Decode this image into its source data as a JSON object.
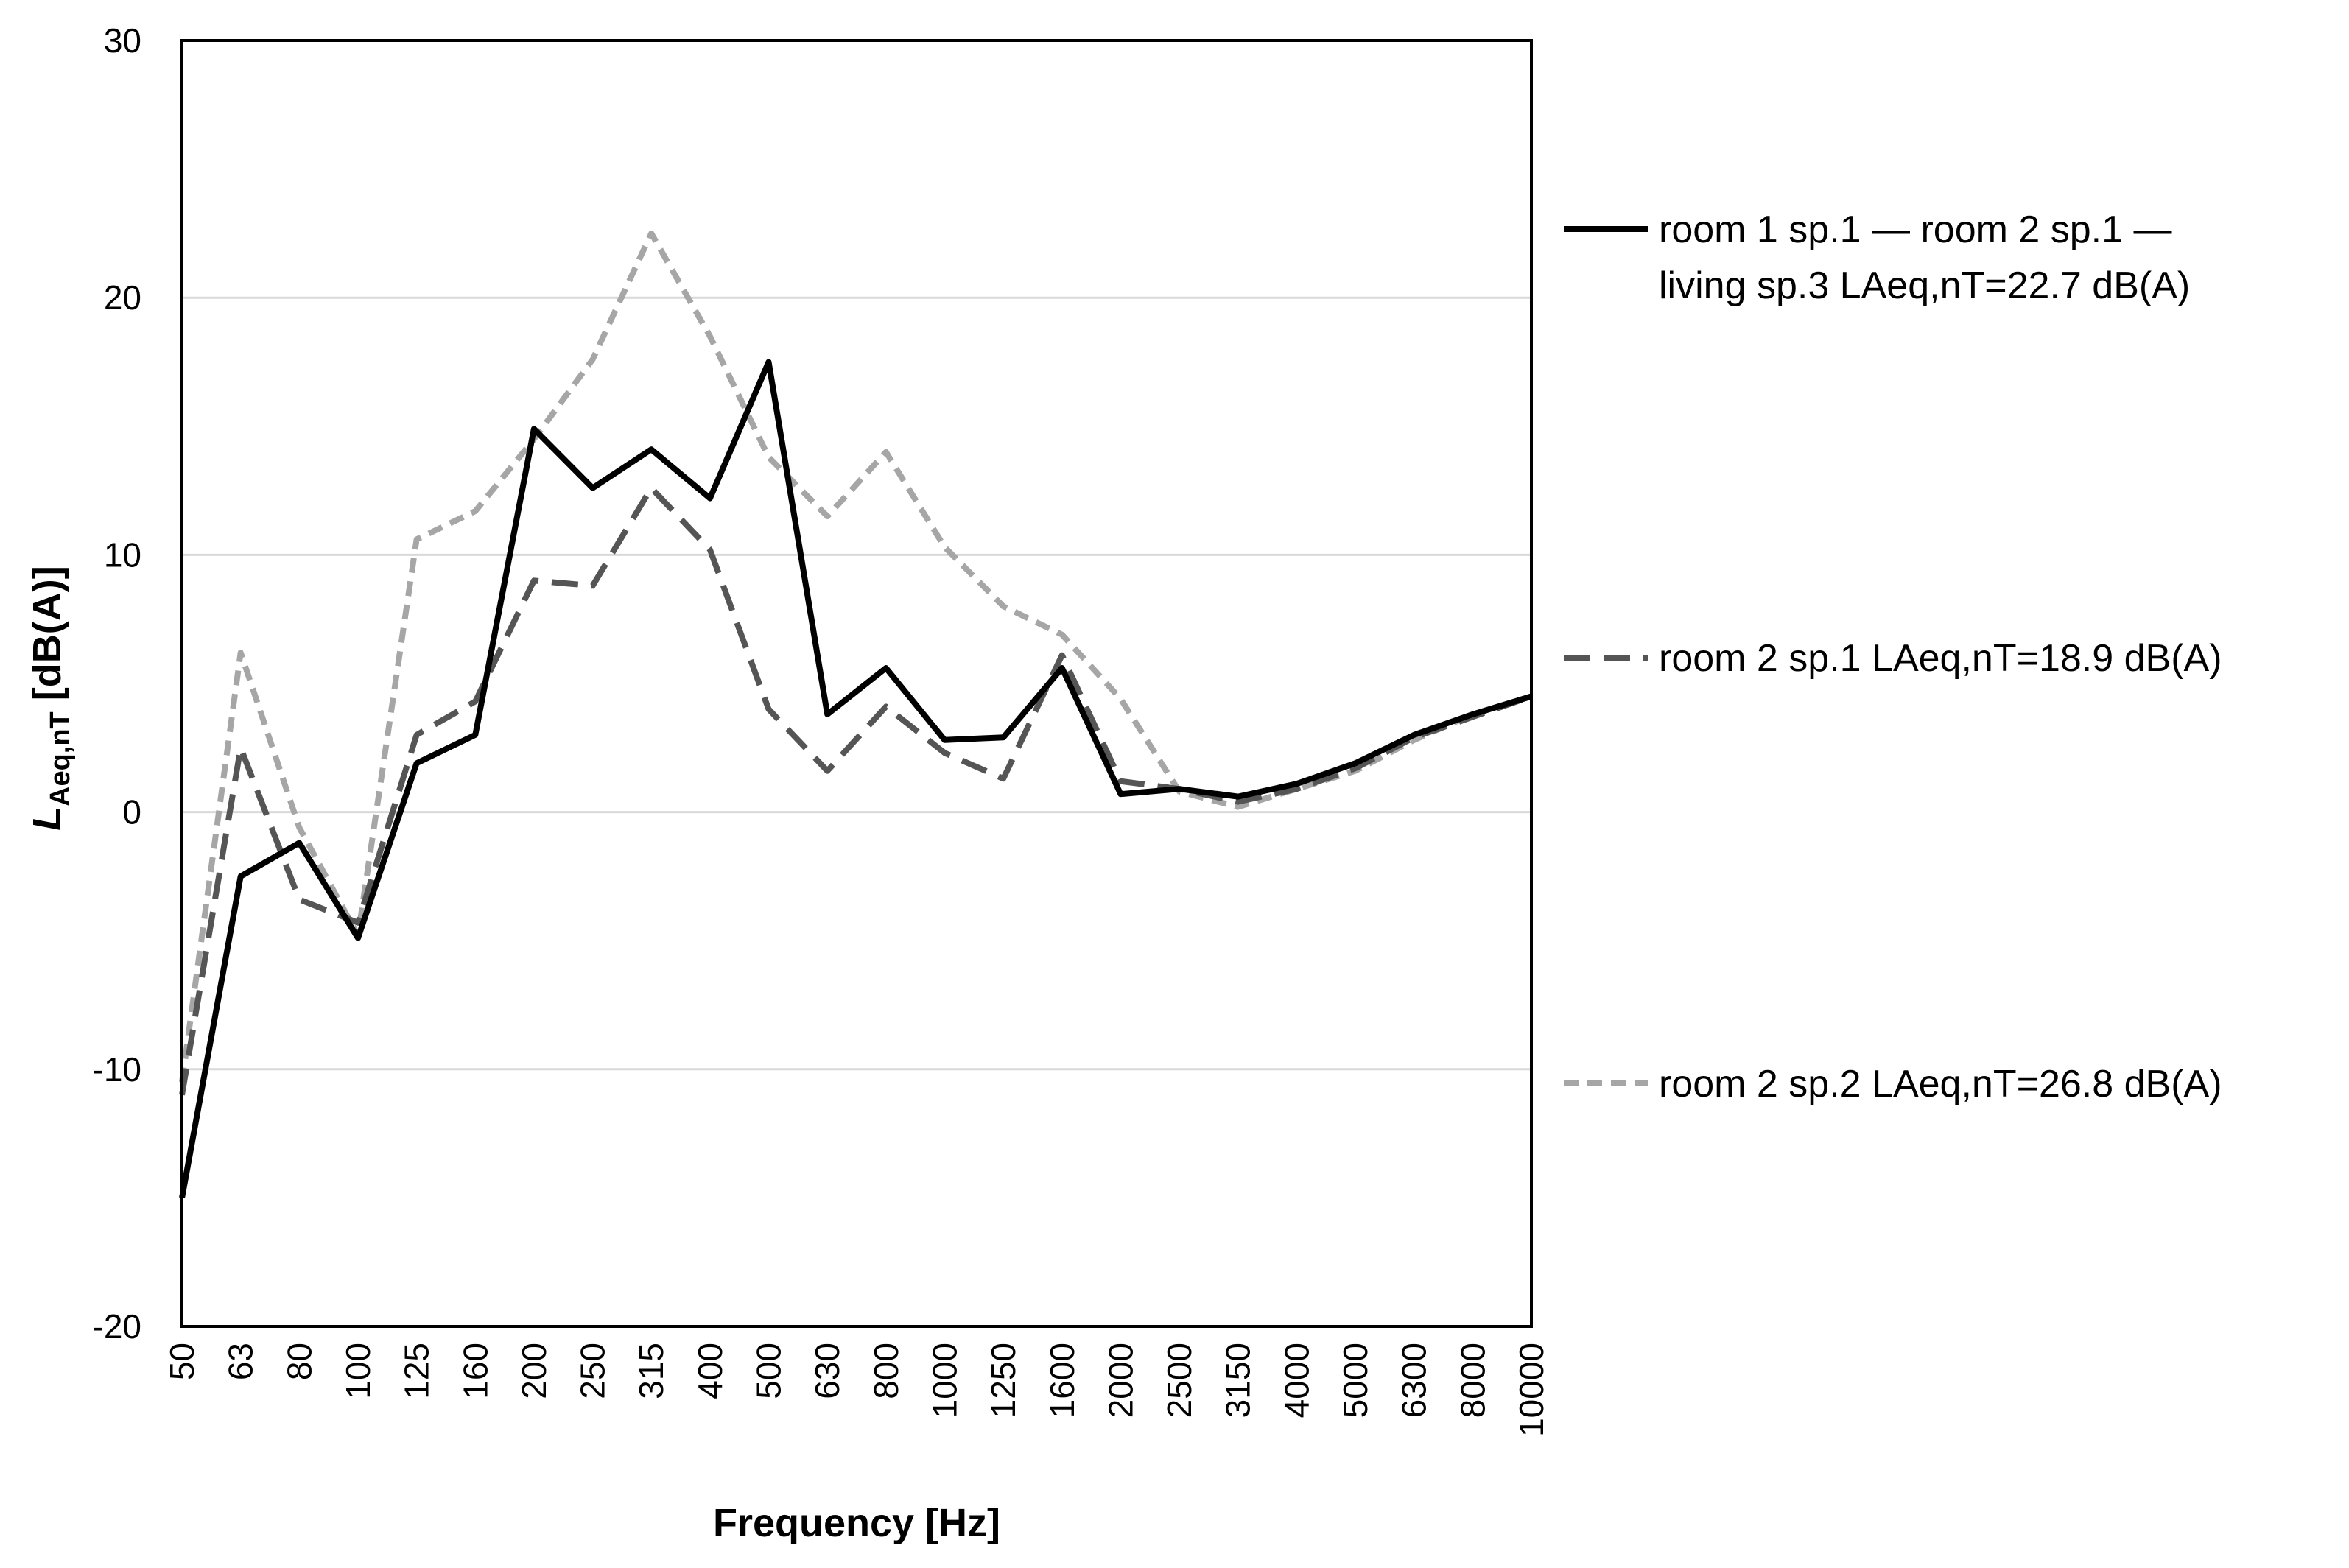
{
  "chart_data": {
    "type": "line",
    "xlabel": "Frequency [Hz]",
    "ylabel_main": "L",
    "ylabel_sub": "Aeq,nT",
    "ylabel_rest": " [dB(A)]",
    "ylim": [
      -20,
      30
    ],
    "yticks": [
      -20,
      -10,
      0,
      10,
      20,
      30
    ],
    "grid": true,
    "legend_position": "right",
    "categories": [
      "50",
      "63",
      "80",
      "100",
      "125",
      "160",
      "200",
      "250",
      "315",
      "400",
      "500",
      "630",
      "800",
      "1000",
      "1250",
      "1600",
      "2000",
      "2500",
      "3150",
      "4000",
      "5000",
      "6300",
      "8000",
      "10000"
    ],
    "series": [
      {
        "name_line1": "room 1 sp.1 — room 2 sp.1 —",
        "name_line2": "living sp.3 LAeq,nT=22.7 dB(A)",
        "color": "#000000",
        "style": "solid",
        "values": [
          -15,
          -2.5,
          -1.2,
          -4.9,
          1.9,
          3.0,
          14.9,
          12.6,
          14.1,
          12.2,
          17.5,
          3.8,
          5.6,
          2.8,
          2.9,
          5.6,
          0.7,
          0.9,
          0.6,
          1.1,
          1.9,
          3.0,
          3.8,
          4.5
        ]
      },
      {
        "name_line1": "room 2 sp.1 LAeq,nT=18.9 dB(A)",
        "name_line2": "",
        "color": "#555555",
        "style": "dashed",
        "values": [
          -11,
          2.5,
          -3.4,
          -4.3,
          3.0,
          4.3,
          9.0,
          8.8,
          12.6,
          10.2,
          4.0,
          1.6,
          4.1,
          2.3,
          1.3,
          6.1,
          1.2,
          0.9,
          0.4,
          0.9,
          1.7,
          2.9,
          3.7,
          4.5
        ]
      },
      {
        "name_line1": "room 2 sp.2 LAeq,nT=26.8 dB(A)",
        "name_line2": "",
        "color": "#a6a6a6",
        "style": "dashed",
        "values": [
          -10.5,
          6.2,
          -0.6,
          -4.8,
          10.6,
          11.7,
          14.5,
          17.6,
          22.5,
          18.5,
          13.8,
          11.5,
          14.0,
          10.3,
          8.0,
          6.9,
          4.4,
          0.8,
          0.2,
          0.9,
          1.6,
          2.8,
          3.8,
          4.5
        ]
      }
    ]
  }
}
